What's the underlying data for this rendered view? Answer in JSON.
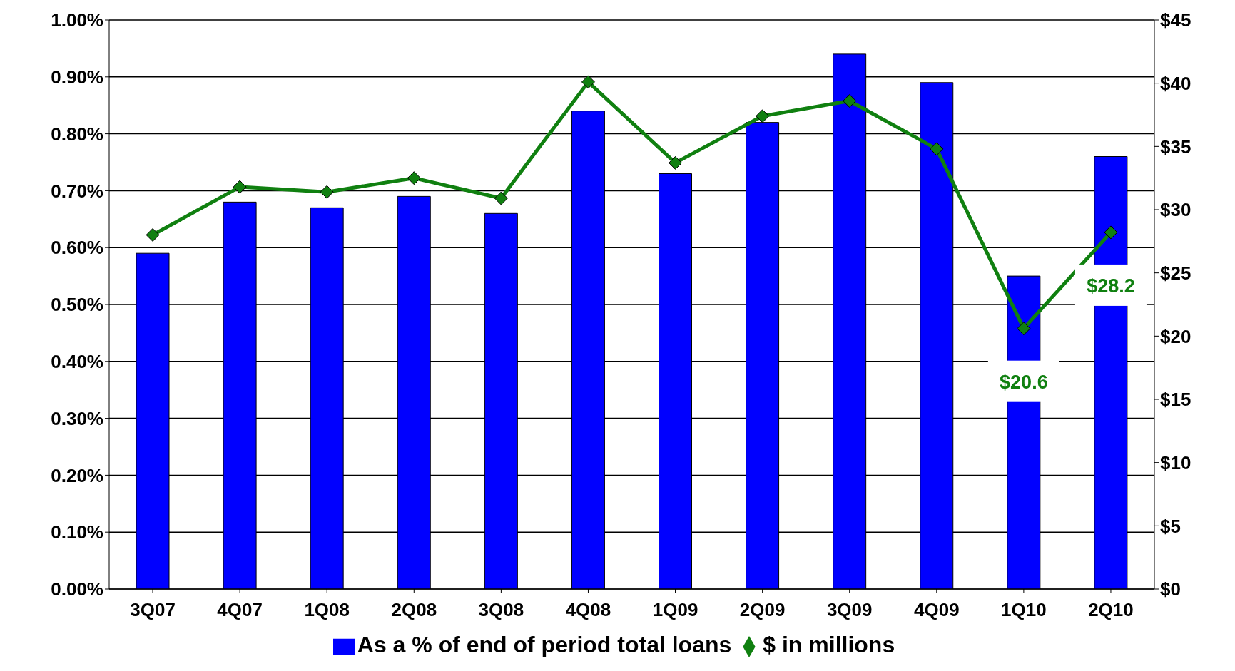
{
  "chart_data": {
    "type": "bar",
    "categories": [
      "3Q07",
      "4Q07",
      "1Q08",
      "2Q08",
      "3Q08",
      "4Q08",
      "1Q09",
      "2Q09",
      "3Q09",
      "4Q09",
      "1Q10",
      "2Q10"
    ],
    "series": [
      {
        "name": "As a % of end of period total loans",
        "color": "#0000ff",
        "values": [
          0.59,
          0.68,
          0.67,
          0.69,
          0.66,
          0.84,
          0.73,
          0.82,
          0.94,
          0.89,
          0.55,
          0.76
        ]
      },
      {
        "name": "$ in millions",
        "type": "line",
        "axis": "y2",
        "color": "#108010",
        "marker": "diamond",
        "values": [
          28.0,
          31.8,
          31.4,
          32.5,
          30.9,
          40.1,
          33.7,
          37.4,
          38.6,
          34.8,
          20.6,
          28.2
        ],
        "value_labels": [
          null,
          null,
          null,
          null,
          null,
          null,
          null,
          null,
          null,
          null,
          "$20.6",
          "$28.2"
        ]
      }
    ],
    "ylim": [
      0,
      1
    ],
    "yticks": [
      {
        "value": 0,
        "label": "0.00%"
      },
      {
        "value": 0.1,
        "label": "0.10%"
      },
      {
        "value": 0.2,
        "label": "0.20%"
      },
      {
        "value": 0.3,
        "label": "0.30%"
      },
      {
        "value": 0.4,
        "label": "0.40%"
      },
      {
        "value": 0.5,
        "label": "0.50%"
      },
      {
        "value": 0.6,
        "label": "0.60%"
      },
      {
        "value": 0.7,
        "label": "0.70%"
      },
      {
        "value": 0.8,
        "label": "0.80%"
      },
      {
        "value": 0.9,
        "label": "0.90%"
      },
      {
        "value": 1,
        "label": "1.00%"
      }
    ],
    "y2lim": [
      0,
      45
    ],
    "y2ticks": [
      {
        "value": 0,
        "label": "$0"
      },
      {
        "value": 5,
        "label": "$5"
      },
      {
        "value": 10,
        "label": "$10"
      },
      {
        "value": 15,
        "label": "$15"
      },
      {
        "value": 20,
        "label": "$20"
      },
      {
        "value": 25,
        "label": "$25"
      },
      {
        "value": 30,
        "label": "$30"
      },
      {
        "value": 35,
        "label": "$35"
      },
      {
        "value": 40,
        "label": "$40"
      },
      {
        "value": 45,
        "label": "$45"
      }
    ],
    "grid": "y",
    "legend": "bottom"
  }
}
